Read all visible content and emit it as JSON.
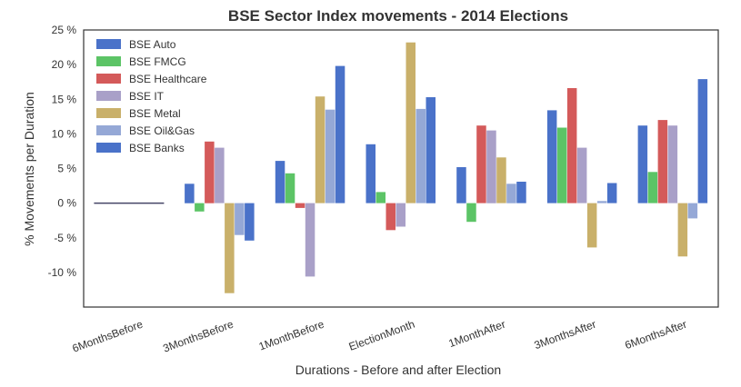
{
  "chart_data": {
    "type": "bar",
    "title": "BSE Sector Index movements - 2014 Elections",
    "xlabel": "Durations - Before and after Election",
    "ylabel": "% Movements per Duration",
    "ylim": [
      -15,
      25
    ],
    "yticks": [
      25,
      20,
      15,
      10,
      5,
      0,
      -5,
      -10
    ],
    "ytick_labels": [
      "25 %",
      "20 %",
      "15 %",
      "10 %",
      "5 %",
      "0 %",
      "-5 %",
      "-10 %"
    ],
    "grid": false,
    "legend_position": "top-left",
    "categories": [
      "6MonthsBefore",
      "3MonthsBefore",
      "1MonthBefore",
      "ElectionMonth",
      "1MonthAfter",
      "3MonthsAfter",
      "6MonthsAfter"
    ],
    "series": [
      {
        "name": "BSE Auto",
        "color": "#4a72c9",
        "values": [
          0,
          2.8,
          6.1,
          8.5,
          5.2,
          13.4,
          11.2
        ]
      },
      {
        "name": "BSE FMCG",
        "color": "#5cc466",
        "values": [
          0,
          -1.2,
          4.3,
          1.6,
          -2.7,
          10.9,
          4.5
        ]
      },
      {
        "name": "BSE Healthcare",
        "color": "#d45a5a",
        "values": [
          0,
          8.9,
          -0.7,
          -3.9,
          11.2,
          16.6,
          12.0
        ]
      },
      {
        "name": "BSE IT",
        "color": "#a9a0c8",
        "values": [
          0,
          8.0,
          -10.6,
          -3.4,
          10.5,
          8.0,
          11.2
        ]
      },
      {
        "name": "BSE Metal",
        "color": "#c9b06a",
        "values": [
          0,
          -13.0,
          15.4,
          23.2,
          6.6,
          -6.4,
          -7.7
        ]
      },
      {
        "name": "BSE Oil&Gas",
        "color": "#95a8d6",
        "values": [
          0,
          -4.6,
          13.5,
          13.6,
          2.8,
          0.3,
          -2.2
        ]
      },
      {
        "name": "BSE Banks",
        "color": "#4a72c9",
        "values": [
          0,
          -5.4,
          19.8,
          15.3,
          3.1,
          2.9,
          17.9
        ]
      }
    ]
  }
}
